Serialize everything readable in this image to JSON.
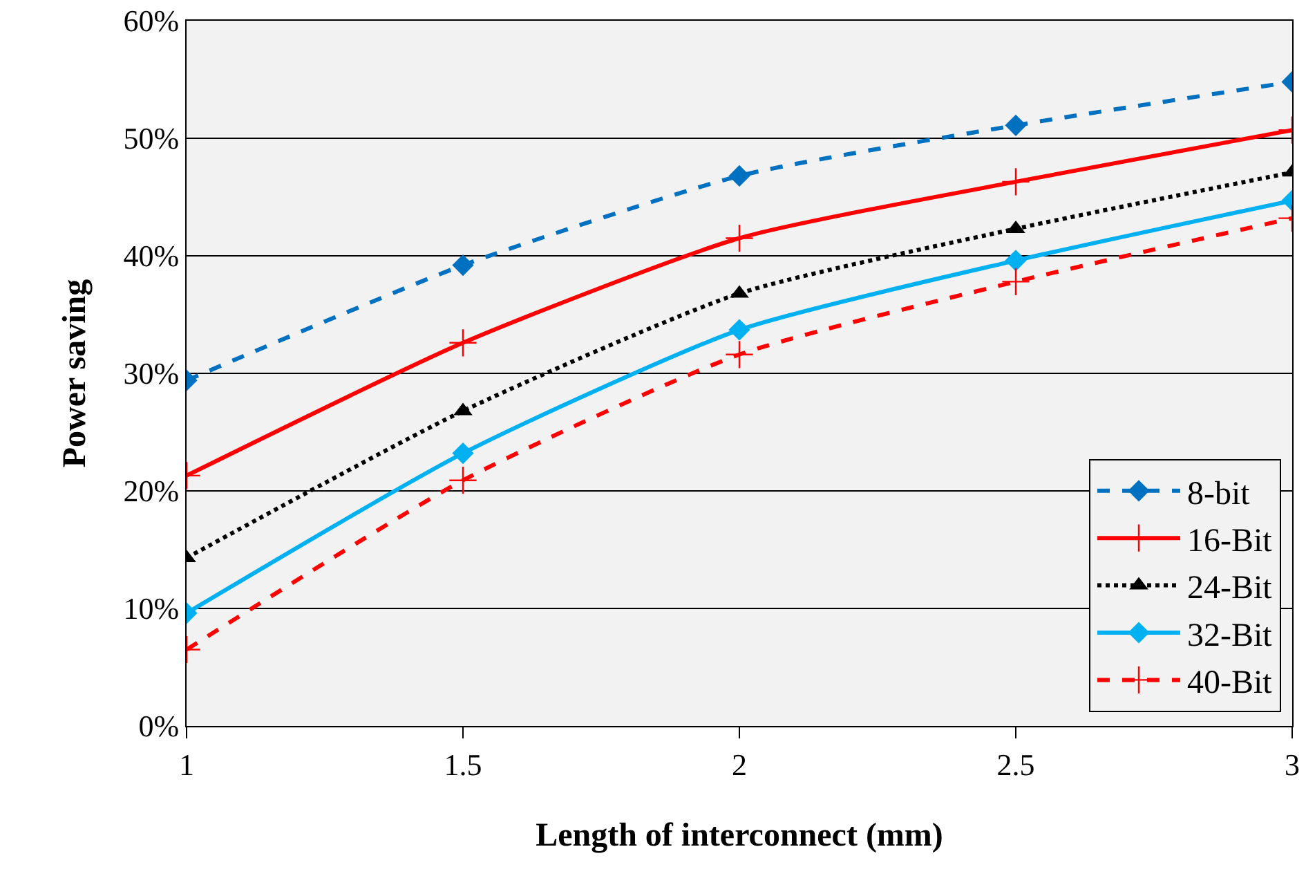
{
  "chart_data": {
    "type": "line",
    "xlabel": "Length of interconnect (mm)",
    "ylabel": "Power saving",
    "x": [
      1,
      1.5,
      2,
      2.5,
      3
    ],
    "series": [
      {
        "name": "8-bit",
        "color": "#0070c0",
        "values": [
          29.4,
          39.2,
          46.8,
          51.1,
          54.8
        ],
        "marker": "diamond",
        "line_style": "dashed"
      },
      {
        "name": "16-Bit",
        "color": "#ff0000",
        "values": [
          21.3,
          32.6,
          41.5,
          46.3,
          50.7
        ],
        "marker": "cross",
        "line_style": "solid"
      },
      {
        "name": "24-Bit",
        "color": "#000000",
        "values": [
          14.3,
          26.8,
          36.8,
          42.3,
          47.1
        ],
        "marker": "triangle",
        "line_style": "dotted"
      },
      {
        "name": "32-Bit",
        "color": "#00b0f0",
        "values": [
          9.6,
          23.2,
          33.7,
          39.6,
          44.7
        ],
        "marker": "diamond",
        "line_style": "solid"
      },
      {
        "name": "40-Bit",
        "color": "#ff0000",
        "values": [
          6.5,
          20.9,
          31.6,
          37.8,
          43.2
        ],
        "marker": "cross",
        "line_style": "dashed"
      }
    ],
    "xlim": [
      1,
      3
    ],
    "xticks": [
      1,
      1.5,
      2,
      2.5,
      3
    ],
    "ylim": [
      0,
      60
    ],
    "yticks": [
      {
        "value": 0,
        "label": "0%"
      },
      {
        "value": 10,
        "label": "10%"
      },
      {
        "value": 20,
        "label": "20%"
      },
      {
        "value": 30,
        "label": "30%"
      },
      {
        "value": 40,
        "label": "40%"
      },
      {
        "value": 50,
        "label": "50%"
      },
      {
        "value": 60,
        "label": "60%"
      }
    ],
    "grid": "y",
    "legend": "bottom right"
  }
}
